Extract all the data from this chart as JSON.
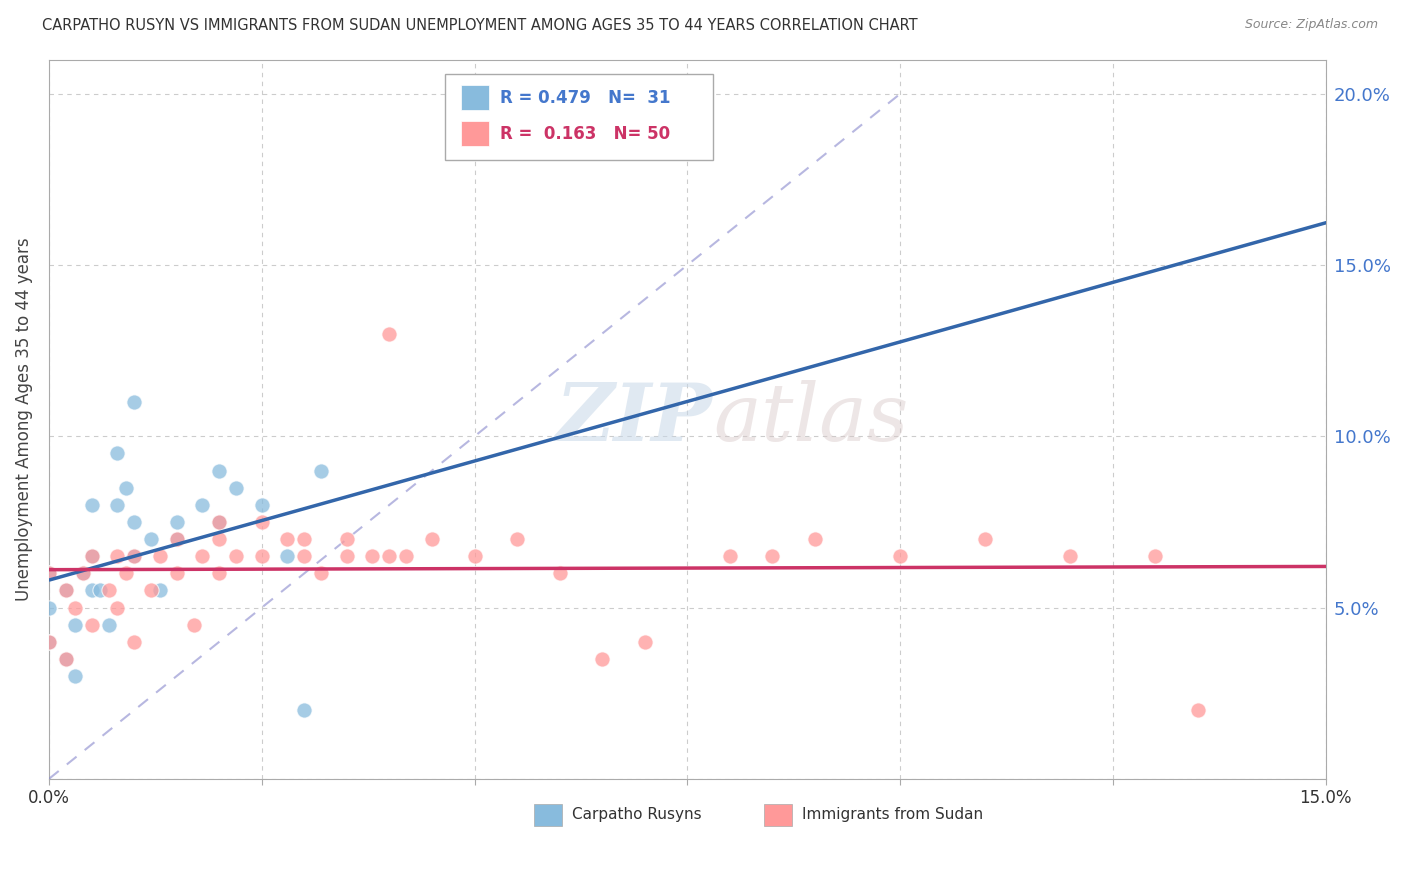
{
  "title": "CARPATHO RUSYN VS IMMIGRANTS FROM SUDAN UNEMPLOYMENT AMONG AGES 35 TO 44 YEARS CORRELATION CHART",
  "source": "Source: ZipAtlas.com",
  "ylabel": "Unemployment Among Ages 35 to 44 years",
  "xlim": [
    0.0,
    0.15
  ],
  "ylim": [
    0.0,
    0.21
  ],
  "xticks": [
    0.0,
    0.025,
    0.05,
    0.075,
    0.1,
    0.125,
    0.15
  ],
  "yticks": [
    0.0,
    0.05,
    0.1,
    0.15,
    0.2
  ],
  "series1_name": "Carpatho Rusyns",
  "series1_R": 0.479,
  "series1_N": 31,
  "series1_color": "#88bbdd",
  "series1_line_color": "#3366aa",
  "series2_name": "Immigrants from Sudan",
  "series2_R": 0.163,
  "series2_N": 50,
  "series2_color": "#ff9999",
  "series2_line_color": "#cc3366",
  "watermark_zip": "ZIP",
  "watermark_atlas": "atlas",
  "background_color": "#ffffff",
  "grid_color": "#cccccc",
  "carpatho_x": [
    0.0,
    0.0,
    0.0,
    0.002,
    0.002,
    0.003,
    0.003,
    0.004,
    0.005,
    0.005,
    0.005,
    0.006,
    0.007,
    0.008,
    0.008,
    0.009,
    0.01,
    0.01,
    0.01,
    0.012,
    0.013,
    0.015,
    0.015,
    0.018,
    0.02,
    0.02,
    0.022,
    0.025,
    0.028,
    0.03,
    0.032
  ],
  "carpatho_y": [
    0.04,
    0.05,
    0.06,
    0.035,
    0.055,
    0.03,
    0.045,
    0.06,
    0.055,
    0.065,
    0.08,
    0.055,
    0.045,
    0.08,
    0.095,
    0.085,
    0.065,
    0.075,
    0.11,
    0.07,
    0.055,
    0.07,
    0.075,
    0.08,
    0.075,
    0.09,
    0.085,
    0.08,
    0.065,
    0.02,
    0.09
  ],
  "sudan_x": [
    0.0,
    0.0,
    0.002,
    0.002,
    0.003,
    0.004,
    0.005,
    0.005,
    0.007,
    0.008,
    0.008,
    0.009,
    0.01,
    0.01,
    0.012,
    0.013,
    0.015,
    0.015,
    0.017,
    0.018,
    0.02,
    0.02,
    0.02,
    0.022,
    0.025,
    0.025,
    0.028,
    0.03,
    0.03,
    0.032,
    0.035,
    0.035,
    0.038,
    0.04,
    0.04,
    0.042,
    0.045,
    0.05,
    0.055,
    0.06,
    0.065,
    0.07,
    0.08,
    0.085,
    0.09,
    0.1,
    0.11,
    0.12,
    0.13,
    0.135
  ],
  "sudan_y": [
    0.04,
    0.06,
    0.035,
    0.055,
    0.05,
    0.06,
    0.045,
    0.065,
    0.055,
    0.05,
    0.065,
    0.06,
    0.04,
    0.065,
    0.055,
    0.065,
    0.06,
    0.07,
    0.045,
    0.065,
    0.06,
    0.07,
    0.075,
    0.065,
    0.065,
    0.075,
    0.07,
    0.065,
    0.07,
    0.06,
    0.065,
    0.07,
    0.065,
    0.065,
    0.13,
    0.065,
    0.07,
    0.065,
    0.07,
    0.06,
    0.035,
    0.04,
    0.065,
    0.065,
    0.07,
    0.065,
    0.07,
    0.065,
    0.065,
    0.02
  ]
}
